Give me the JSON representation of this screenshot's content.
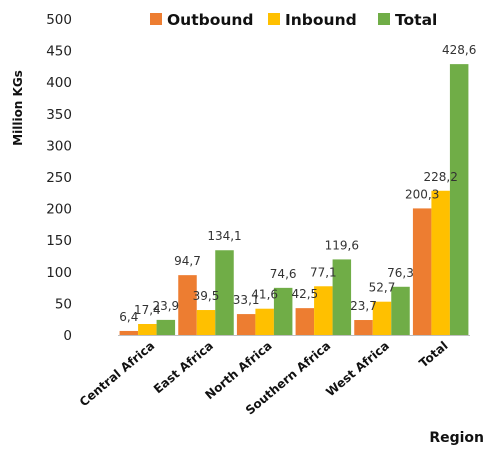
{
  "chart_data": {
    "type": "bar",
    "title": "",
    "xlabel": "Region",
    "ylabel": "Million KGs",
    "ylim": [
      0,
      500
    ],
    "yticks": [
      0,
      50,
      100,
      150,
      200,
      250,
      300,
      350,
      400,
      450,
      500
    ],
    "grid": false,
    "legend_position": "top",
    "categories": [
      "Central Africa",
      "East Africa",
      "North Africa",
      "Southern Africa",
      "West Africa",
      "Total"
    ],
    "series": [
      {
        "name": "Outbound",
        "color": "#ED7D31",
        "values": [
          6.4,
          94.7,
          33.1,
          42.5,
          23.7,
          200.3
        ],
        "labels": [
          "6,4",
          "94,7",
          "33,1",
          "42,5",
          "23,7",
          "200,3"
        ],
        "label_color": "#333333"
      },
      {
        "name": "Inbound",
        "color": "#FFC000",
        "values": [
          17.4,
          39.5,
          41.6,
          77.1,
          52.7,
          228.2
        ],
        "labels": [
          "17,4",
          "39,5",
          "41,6",
          "77,1",
          "52,7",
          "228,2"
        ],
        "label_color": "#555555"
      },
      {
        "name": "Total",
        "color": "#70AD47",
        "values": [
          23.9,
          134.1,
          74.6,
          119.6,
          76.3,
          428.6
        ],
        "labels": [
          "23,9",
          "134,1",
          "74,6",
          "119,6",
          "76,3",
          "428,6"
        ],
        "label_color": "#333333"
      }
    ]
  }
}
